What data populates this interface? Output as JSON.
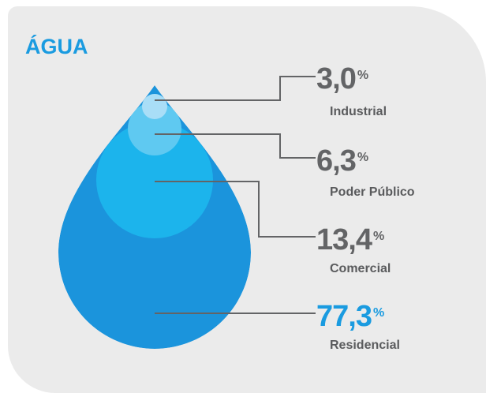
{
  "chart_data": {
    "type": "drop",
    "title": "ÁGUA",
    "categories": [
      "Industrial",
      "Poder Público",
      "Comercial",
      "Residencial"
    ],
    "values": [
      3.0,
      6.3,
      13.4,
      77.3
    ],
    "value_labels": [
      "3,0",
      "6,3",
      "13,4",
      "77,3"
    ],
    "unit": "%",
    "colors": [
      "#a9def7",
      "#5fc9f1",
      "#1cb4ec",
      "#1b94dc"
    ],
    "label_colors": [
      "#636466",
      "#636466",
      "#636466",
      "#1a9be0"
    ]
  }
}
